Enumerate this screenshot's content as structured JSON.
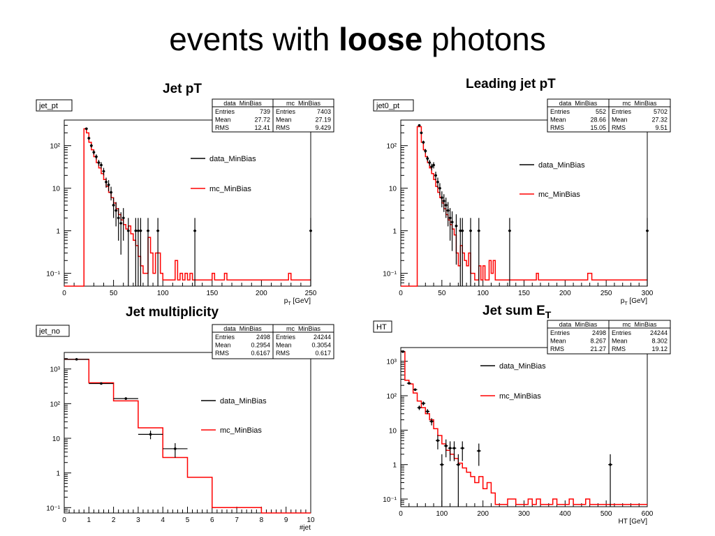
{
  "slide": {
    "title_pre": "events with ",
    "title_bold": "loose",
    "title_post": " photons"
  },
  "colors": {
    "data": "#000000",
    "mc": "#ff0000",
    "frame": "#000000",
    "background": "#ffffff"
  },
  "chart_data": [
    {
      "type": "line",
      "title": "Jet pT",
      "hist_name": "jet_pt",
      "xlabel": "p_T [GeV]",
      "xlabel_parts": {
        "main": "p",
        "sub": "T",
        "unit": "[GeV]"
      },
      "xlim": [
        0,
        250
      ],
      "ylim": [
        0.05,
        400
      ],
      "yscale": "log",
      "x_ticks": [
        "0",
        "50",
        "100",
        "150",
        "200",
        "250"
      ],
      "y_ticks": [
        "10⁻¹",
        "1",
        "10",
        "10²"
      ],
      "legend": "right",
      "stats": [
        {
          "name": "data_MinBias",
          "rows": [
            [
              "Entries",
              "739"
            ],
            [
              "Mean",
              "27.72"
            ],
            [
              "RMS",
              "12.41"
            ]
          ]
        },
        {
          "name": "mc_MinBias",
          "rows": [
            [
              "Entries",
              "7403"
            ],
            [
              "Mean",
              "27.19"
            ],
            [
              "RMS",
              "9.429"
            ]
          ]
        }
      ],
      "series": [
        {
          "name": "data_MinBias",
          "points": [
            [
              22.5,
              250
            ],
            [
              25,
              150
            ],
            [
              27.5,
              100
            ],
            [
              30,
              70
            ],
            [
              32.5,
              55
            ],
            [
              35,
              40
            ],
            [
              37.5,
              35
            ],
            [
              40,
              25
            ],
            [
              42.5,
              14
            ],
            [
              45,
              12
            ],
            [
              47.5,
              8
            ],
            [
              50,
              4
            ],
            [
              52.5,
              3
            ],
            [
              55,
              2
            ],
            [
              57.5,
              1.5
            ],
            [
              60,
              2
            ],
            [
              65,
              1
            ],
            [
              72.5,
              1
            ],
            [
              75,
              1
            ],
            [
              77.5,
              1
            ],
            [
              85,
              1
            ],
            [
              95,
              1
            ],
            [
              132.5,
              1
            ],
            [
              250,
              1
            ]
          ]
        },
        {
          "name": "mc_MinBias",
          "steps": [
            [
              0,
              0.01
            ],
            [
              20,
              0.01
            ],
            [
              20,
              250
            ],
            [
              22.5,
              200
            ],
            [
              25,
              120
            ],
            [
              27.5,
              80
            ],
            [
              30,
              55
            ],
            [
              32.5,
              40
            ],
            [
              35,
              30
            ],
            [
              37.5,
              22
            ],
            [
              40,
              16
            ],
            [
              42.5,
              11
            ],
            [
              45,
              8
            ],
            [
              47.5,
              6
            ],
            [
              50,
              4.5
            ],
            [
              52.5,
              3.3
            ],
            [
              55,
              2.4
            ],
            [
              57.5,
              1.8
            ],
            [
              60,
              1.4
            ],
            [
              62.5,
              1.1
            ],
            [
              65,
              1.3
            ],
            [
              67.5,
              0.85
            ],
            [
              70,
              0.6
            ],
            [
              72.5,
              0.45
            ],
            [
              75,
              0.25
            ],
            [
              77.5,
              0.15
            ],
            [
              80,
              0.1
            ],
            [
              85,
              0.7
            ],
            [
              87.5,
              0.3
            ],
            [
              90,
              0.1
            ],
            [
              92.5,
              0.3
            ],
            [
              97.5,
              0.1
            ],
            [
              100,
              0.07
            ],
            [
              112.5,
              0.2
            ],
            [
              115,
              0.07
            ],
            [
              117.5,
              0.1
            ],
            [
              120,
              0.07
            ],
            [
              122.5,
              0.1
            ],
            [
              125,
              0.07
            ],
            [
              127.5,
              0.1
            ],
            [
              130,
              0.07
            ],
            [
              150,
              0.1
            ],
            [
              152.5,
              0.07
            ],
            [
              162.5,
              0.1
            ],
            [
              165,
              0.07
            ],
            [
              227.5,
              0.1
            ],
            [
              230,
              0.07
            ],
            [
              250,
              0.07
            ]
          ]
        }
      ]
    },
    {
      "type": "line",
      "title": "Leading jet pT",
      "hist_name": "jet0_pt",
      "xlabel": "p_T [GeV]",
      "xlabel_parts": {
        "main": "p",
        "sub": "T",
        "unit": "[GeV]"
      },
      "xlim": [
        0,
        300
      ],
      "ylim": [
        0.05,
        400
      ],
      "yscale": "log",
      "x_ticks": [
        "0",
        "50",
        "100",
        "150",
        "200",
        "250",
        "300"
      ],
      "y_ticks": [
        "10⁻¹",
        "1",
        "10",
        "10²"
      ],
      "legend": "right",
      "stats": [
        {
          "name": "data_MinBias",
          "rows": [
            [
              "Entries",
              "552"
            ],
            [
              "Mean",
              "28.66"
            ],
            [
              "RMS",
              "15.05"
            ]
          ]
        },
        {
          "name": "mc_MinBias",
          "rows": [
            [
              "Entries",
              "5702"
            ],
            [
              "Mean",
              "27.32"
            ],
            [
              "RMS",
              "9.51"
            ]
          ]
        }
      ],
      "series": [
        {
          "name": "data_MinBias",
          "points": [
            [
              22.5,
              300
            ],
            [
              25,
              200
            ],
            [
              27.5,
              120
            ],
            [
              30,
              75
            ],
            [
              32.5,
              50
            ],
            [
              35,
              40
            ],
            [
              37.5,
              32
            ],
            [
              40,
              35
            ],
            [
              42.5,
              20
            ],
            [
              45,
              14
            ],
            [
              47.5,
              10
            ],
            [
              50,
              6
            ],
            [
              52.5,
              5
            ],
            [
              55,
              4
            ],
            [
              57.5,
              3
            ],
            [
              60,
              2
            ],
            [
              62.5,
              1.6
            ],
            [
              67.5,
              1.3
            ],
            [
              72.5,
              1
            ],
            [
              75,
              1
            ],
            [
              85,
              1
            ],
            [
              95,
              1
            ],
            [
              132.5,
              1
            ],
            [
              300,
              1
            ]
          ]
        },
        {
          "name": "mc_MinBias",
          "steps": [
            [
              0,
              0.01
            ],
            [
              20,
              0.01
            ],
            [
              20,
              280
            ],
            [
              25,
              120
            ],
            [
              27.5,
              80
            ],
            [
              30,
              55
            ],
            [
              32.5,
              40
            ],
            [
              35,
              30
            ],
            [
              37.5,
              22
            ],
            [
              40,
              16
            ],
            [
              42.5,
              11
            ],
            [
              45,
              8
            ],
            [
              47.5,
              6
            ],
            [
              50,
              4.5
            ],
            [
              52.5,
              3.3
            ],
            [
              55,
              2.4
            ],
            [
              57.5,
              1.8
            ],
            [
              60,
              1.4
            ],
            [
              62.5,
              1.1
            ],
            [
              65,
              0.8
            ],
            [
              67.5,
              0.3
            ],
            [
              70,
              0.15
            ],
            [
              72.5,
              0.45
            ],
            [
              75,
              0.3
            ],
            [
              77.5,
              0.2
            ],
            [
              80,
              0.15
            ],
            [
              82.5,
              0.3
            ],
            [
              85,
              0.1
            ],
            [
              90,
              0.07
            ],
            [
              95,
              0.15
            ],
            [
              97.5,
              0.07
            ],
            [
              100,
              0.15
            ],
            [
              102.5,
              0.07
            ],
            [
              107.5,
              0.2
            ],
            [
              110,
              0.1
            ],
            [
              112.5,
              0.2
            ],
            [
              115,
              0.07
            ],
            [
              165,
              0.1
            ],
            [
              167.5,
              0.07
            ],
            [
              227.5,
              0.1
            ],
            [
              232.5,
              0.07
            ],
            [
              300,
              0.07
            ]
          ]
        }
      ]
    },
    {
      "type": "line",
      "title": "Jet multiplicity",
      "hist_name": "jet_no",
      "xlabel": "#jet",
      "xlim": [
        0,
        10
      ],
      "ylim": [
        0.07,
        3000
      ],
      "yscale": "log",
      "x_ticks": [
        "0",
        "1",
        "2",
        "3",
        "4",
        "5",
        "6",
        "7",
        "8",
        "9",
        "10"
      ],
      "y_ticks": [
        "10⁻¹",
        "1",
        "10",
        "10²",
        "10³"
      ],
      "legend": "right",
      "stats": [
        {
          "name": "data_MinBias",
          "rows": [
            [
              "Entries",
              "2498"
            ],
            [
              "Mean",
              "0.2954"
            ],
            [
              "RMS",
              "0.6167"
            ]
          ]
        },
        {
          "name": "mc_MinBias",
          "rows": [
            [
              "Entries",
              "24244"
            ],
            [
              "Mean",
              "0.3054"
            ],
            [
              "RMS",
              "0.617"
            ]
          ]
        }
      ],
      "series": [
        {
          "name": "data_MinBias",
          "points": [
            [
              0.5,
              1900
            ],
            [
              1.5,
              380
            ],
            [
              2.5,
              140
            ],
            [
              3.5,
              13
            ],
            [
              4.5,
              5
            ]
          ]
        },
        {
          "name": "mc_MinBias",
          "steps": [
            [
              0,
              1900
            ],
            [
              1,
              400
            ],
            [
              2,
              120
            ],
            [
              3,
              20
            ],
            [
              4,
              2.8
            ],
            [
              5,
              0.75
            ],
            [
              6,
              0.1
            ],
            [
              8,
              0.07
            ],
            [
              10,
              0.07
            ]
          ]
        }
      ]
    },
    {
      "type": "line",
      "title": "Jet sum E_T",
      "title_parts": {
        "main": "Jet sum E",
        "sub": "T"
      },
      "hist_name": "HT",
      "xlabel": "HT [GeV]",
      "xlim": [
        0,
        600
      ],
      "ylim": [
        0.06,
        2500
      ],
      "yscale": "log",
      "x_ticks": [
        "0",
        "100",
        "200",
        "300",
        "400",
        "500",
        "600"
      ],
      "y_ticks": [
        "10⁻¹",
        "1",
        "10",
        "10²",
        "10³"
      ],
      "legend": "right",
      "stats": [
        {
          "name": "data_MinBias",
          "rows": [
            [
              "Entries",
              "2498"
            ],
            [
              "Mean",
              "8.267"
            ],
            [
              "RMS",
              "21.27"
            ]
          ]
        },
        {
          "name": "mc_MinBias",
          "rows": [
            [
              "Entries",
              "24244"
            ],
            [
              "Mean",
              "8.302"
            ],
            [
              "RMS",
              "19.12"
            ]
          ]
        }
      ],
      "series": [
        {
          "name": "data_MinBias",
          "points": [
            [
              5,
              1900
            ],
            [
              20,
              230
            ],
            [
              35,
              150
            ],
            [
              45,
              45
            ],
            [
              55,
              60
            ],
            [
              65,
              35
            ],
            [
              75,
              18
            ],
            [
              90,
              5
            ],
            [
              100,
              1
            ],
            [
              110,
              3.5
            ],
            [
              120,
              3
            ],
            [
              130,
              3
            ],
            [
              140,
              1
            ],
            [
              150,
              3
            ],
            [
              190,
              2.5
            ],
            [
              510,
              1
            ]
          ]
        },
        {
          "name": "mc_MinBias",
          "steps": [
            [
              0,
              1900
            ],
            [
              10,
              280
            ],
            [
              20,
              220
            ],
            [
              30,
              120
            ],
            [
              40,
              70
            ],
            [
              50,
              45
            ],
            [
              60,
              30
            ],
            [
              70,
              20
            ],
            [
              80,
              11
            ],
            [
              90,
              7
            ],
            [
              100,
              4
            ],
            [
              110,
              2.6
            ],
            [
              120,
              2
            ],
            [
              130,
              1.5
            ],
            [
              140,
              1.1
            ],
            [
              150,
              0.8
            ],
            [
              160,
              0.6
            ],
            [
              170,
              0.45
            ],
            [
              180,
              0.3
            ],
            [
              190,
              0.45
            ],
            [
              200,
              0.2
            ],
            [
              210,
              0.3
            ],
            [
              220,
              0.15
            ],
            [
              230,
              0.07
            ],
            [
              260,
              0.1
            ],
            [
              280,
              0.07
            ],
            [
              310,
              0.1
            ],
            [
              320,
              0.07
            ],
            [
              330,
              0.1
            ],
            [
              340,
              0.07
            ],
            [
              370,
              0.1
            ],
            [
              380,
              0.07
            ],
            [
              410,
              0.1
            ],
            [
              420,
              0.07
            ],
            [
              450,
              0.1
            ],
            [
              460,
              0.07
            ],
            [
              600,
              0.07
            ]
          ]
        }
      ]
    }
  ]
}
